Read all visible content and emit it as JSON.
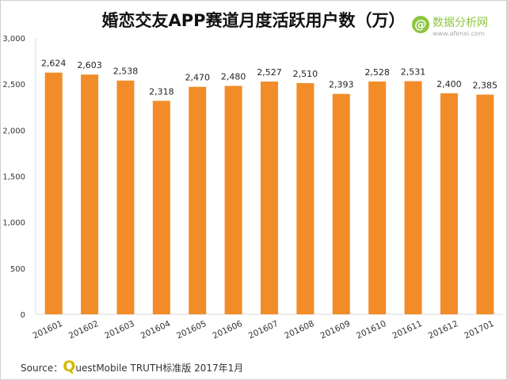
{
  "title": "婚恋交友APP赛道月度活跃用户数（万）",
  "logo": {
    "icon": "at-sign-icon",
    "name": "数据分析网",
    "url": "www.afenxi.com"
  },
  "source": {
    "label": "Source：",
    "q": "Q",
    "rest": "uestMobile TRUTH标准版 2017年1月"
  },
  "chart_data": {
    "type": "bar",
    "title": "婚恋交友APP赛道月度活跃用户数（万）",
    "xlabel": "",
    "ylabel": "",
    "ylim": [
      0,
      3000
    ],
    "yticks": [
      0,
      500,
      1000,
      1500,
      2000,
      2500,
      3000
    ],
    "ytick_labels": [
      "0",
      "500",
      "1,000",
      "1,500",
      "2,000",
      "2,500",
      "3,000"
    ],
    "categories": [
      "201601",
      "201602",
      "201603",
      "201604",
      "201605",
      "201606",
      "201607",
      "201608",
      "201609",
      "201610",
      "201611",
      "201612",
      "201701"
    ],
    "values": [
      2624,
      2603,
      2538,
      2318,
      2470,
      2480,
      2527,
      2510,
      2393,
      2528,
      2531,
      2400,
      2385
    ],
    "data_labels": [
      "2,624",
      "2,603",
      "2,538",
      "2,318",
      "2,470",
      "2,480",
      "2,527",
      "2,510",
      "2,393",
      "2,528",
      "2,531",
      "2,400",
      "2,385"
    ],
    "bar_color": "#f28c28",
    "grid": false,
    "legend": "none"
  }
}
